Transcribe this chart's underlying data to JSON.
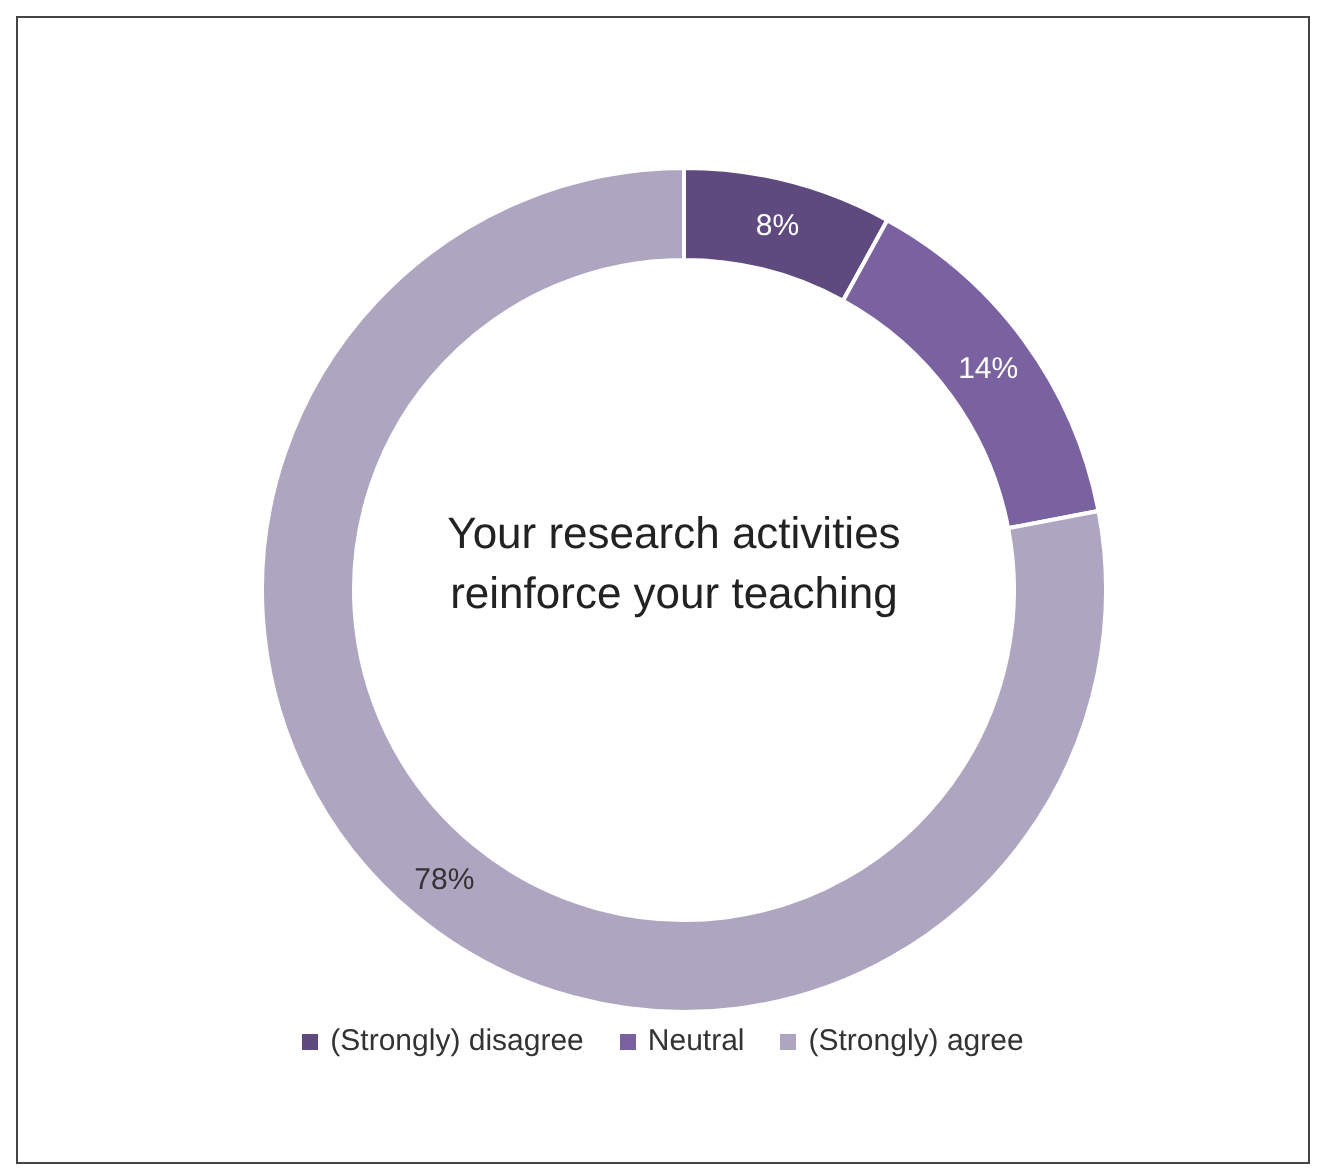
{
  "chart_data": {
    "type": "donut",
    "title": "Your research activities reinforce your teaching",
    "categories": [
      "(Strongly) disagree",
      "Neutral",
      "(Strongly) agree"
    ],
    "values": [
      8,
      14,
      78
    ],
    "colors": [
      "#5f4a80",
      "#7a62a0",
      "#aea6c0"
    ],
    "value_labels": [
      "8%",
      "14%",
      "78%"
    ],
    "legend": "bottom"
  }
}
